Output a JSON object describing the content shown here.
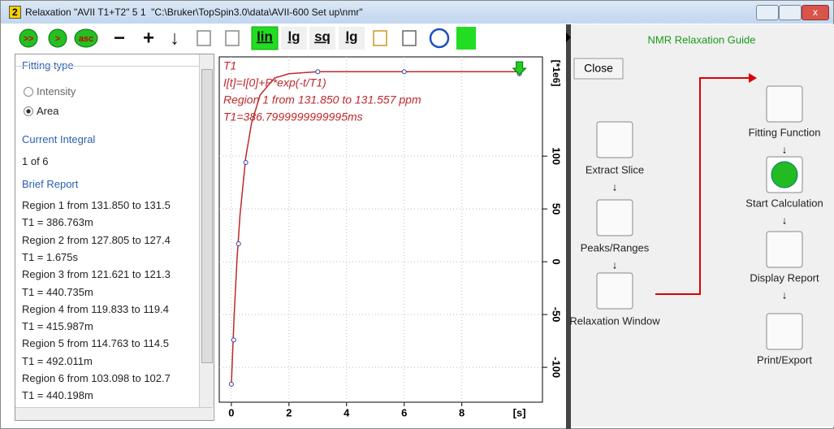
{
  "window": {
    "badge": "2",
    "title": "Relaxation \"AVII T1+T2\" 5 1  \"C:\\Bruker\\TopSpin3.0\\data\\AVII-600 Set up\\nmr\""
  },
  "toolbar": {
    "buttons": [
      ">>",
      ">",
      "asc",
      "−",
      "+",
      "↓",
      "lin",
      "lg",
      "sq",
      "lg"
    ]
  },
  "left_panel": {
    "fitting_type": {
      "title": "Fitting type",
      "options": [
        "Intensity",
        "Area"
      ],
      "selected": 1
    },
    "current_integral": {
      "title": "Current Integral",
      "value": "1 of 6"
    },
    "brief_report": {
      "title": "Brief Report",
      "lines": [
        "Region 1 from 131.850 to 131.5",
        "T1   =   386.763m",
        "Region 2 from 127.805 to 127.4",
        "T1   =      1.675s",
        "Region 3 from 121.621 to 121.3",
        "T1   =   440.735m",
        "Region 4 from 119.833 to 119.4",
        "T1   =   415.987m",
        "Region 5 from 114.763 to 114.5",
        "T1   =   492.011m",
        "Region 6 from 103.098 to 102.7",
        "T1   =   440.198m"
      ]
    }
  },
  "chart_data": {
    "type": "scatter",
    "annotations": [
      "T1",
      "I[t]=I[0]+P*exp(-t/T1)",
      "Region 1 from 131.850 to 131.557 ppm",
      "T1=386.7999999999995ms"
    ],
    "x_label": "[s]",
    "y_label": "[*1e6]",
    "xlim": [
      -0.42,
      10.8
    ],
    "ylim": [
      -133,
      194
    ],
    "xticks": [
      0,
      2,
      4,
      6,
      8
    ],
    "yticks": [
      -100,
      -50,
      0,
      50,
      100
    ],
    "grid": true,
    "series": [
      {
        "name": "points",
        "color": "#3a3aa0",
        "x": [
          0,
          0.08,
          0.25,
          0.5,
          3,
          6,
          10
        ],
        "values": [
          -116,
          -74,
          17,
          94,
          180,
          180,
          178
        ]
      },
      {
        "name": "fit",
        "color": "#c0282d",
        "x": [
          0,
          0.1,
          0.2,
          0.3,
          0.5,
          0.7,
          1,
          1.5,
          2,
          3,
          5,
          10
        ],
        "values": [
          -116,
          -49,
          4,
          44,
          99,
          131,
          158,
          174,
          178,
          180,
          180,
          180
        ]
      }
    ]
  },
  "guide": {
    "title": "NMR Relaxation Guide",
    "close": "Close",
    "steps": [
      "Extract Slice",
      "Peaks/Ranges",
      "Relaxation Window",
      "Fitting Function",
      "Start Calculation",
      "Display Report",
      "Print/Export"
    ]
  }
}
